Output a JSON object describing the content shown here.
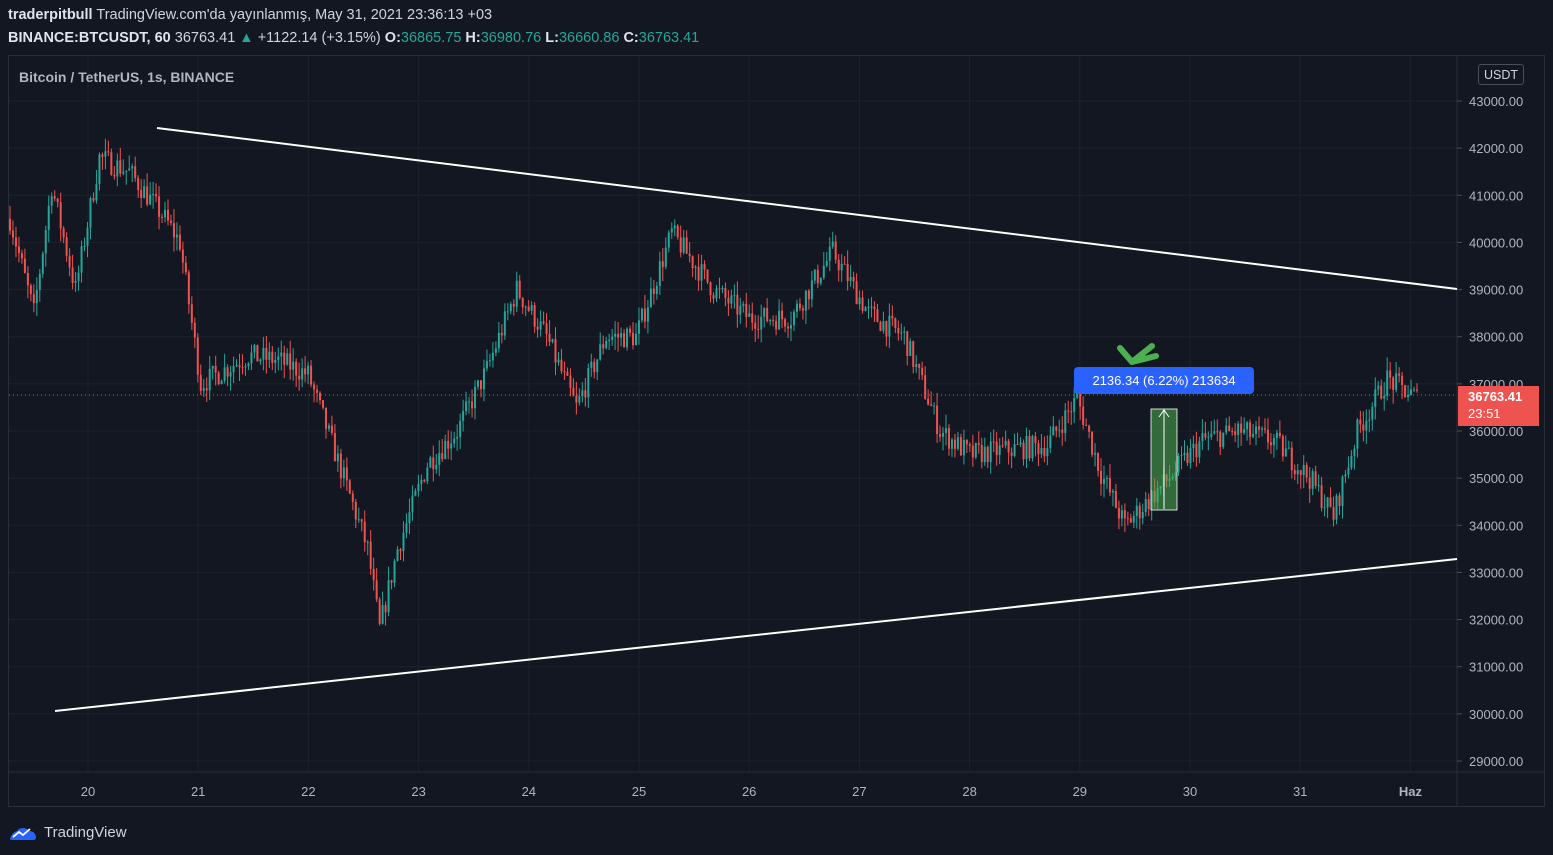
{
  "header": {
    "author": "traderpitbull",
    "published": "TradingView.com'da yayınlanmış, May 31, 2021 23:36:13 +03",
    "symbol": "BINANCE:BTCUSDT, 60",
    "last": "36763.41",
    "change_arrow": "▲",
    "change": "+1122.14 (+3.15%)",
    "o_label": "O:",
    "o_val": "36865.75",
    "h_label": "H:",
    "h_val": "36980.76",
    "l_label": "L:",
    "l_val": "36660.86",
    "c_label": "C:",
    "c_val": "36763.41"
  },
  "chart": {
    "title": "Bitcoin / TetherUS, 1s, BINANCE",
    "currency": "USDT",
    "price_tag": "36763.41",
    "countdown": "23:51",
    "measure_label": "2136.34 (6.22%) 213634",
    "y_ticks": [
      "43000.00",
      "42000.00",
      "41000.00",
      "40000.00",
      "39000.00",
      "38000.00",
      "37000.00",
      "36000.00",
      "35000.00",
      "34000.00",
      "33000.00",
      "32000.00",
      "31000.00",
      "30000.00",
      "29000.00"
    ],
    "x_ticks": [
      "20",
      "21",
      "22",
      "23",
      "24",
      "25",
      "26",
      "27",
      "28",
      "29",
      "30",
      "31",
      "Haz"
    ],
    "colors": {
      "up": "#26a69a",
      "down": "#ef5350",
      "line": "#ffffff",
      "bg": "#131722",
      "measure": "#2962ff",
      "arrow": "#4caf50"
    }
  },
  "brand": {
    "name": "TradingView",
    "icon": "tradingview-logo-icon"
  }
}
